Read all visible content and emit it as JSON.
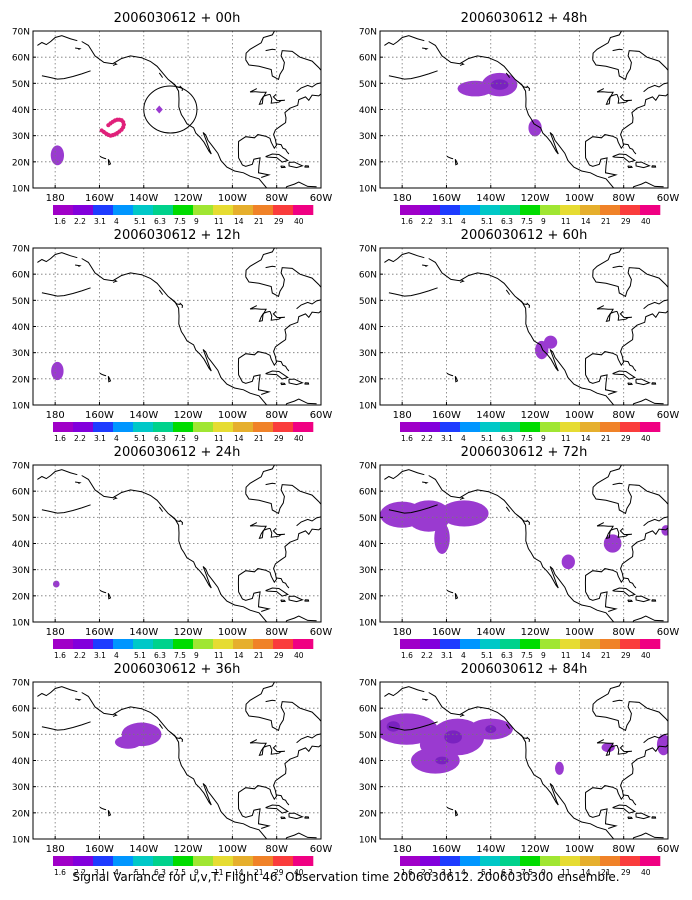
{
  "caption": "Signal Variance for u,v,T. Flight 46. Observation time 2006030612. 2006030300 ensemble.",
  "lat_labels": [
    "10N",
    "20N",
    "30N",
    "40N",
    "50N",
    "60N",
    "70N"
  ],
  "lon_labels": [
    "180",
    "160W",
    "140W",
    "120W",
    "100W",
    "80W",
    "60W"
  ],
  "map_extent": {
    "lon_min": -190,
    "lon_max": -60,
    "lat_min": 10,
    "lat_max": 70
  },
  "colorbar": {
    "labels": [
      "1.6",
      "2.2",
      "3.1",
      "4",
      "5.1",
      "6.3",
      "7.5",
      "9",
      "11",
      "14",
      "21",
      "29",
      "40"
    ],
    "colors": [
      "#a000c8",
      "#8200dc",
      "#1e3cff",
      "#0096ff",
      "#00c8c8",
      "#00d28c",
      "#00dc00",
      "#a0e632",
      "#e6dc32",
      "#e6af2d",
      "#f08228",
      "#fa3c3c",
      "#f00082"
    ]
  },
  "colors": {
    "signal": "#9a3ad0",
    "signal_dark": "#7a22c0",
    "observations": "#e0207a"
  },
  "panels": [
    {
      "title": "2006030612 + 00h",
      "observations": [
        [
          -156,
          34
        ],
        [
          -155,
          34.7
        ],
        [
          -154,
          35.3
        ],
        [
          -153,
          35.8
        ],
        [
          -152,
          36.1
        ],
        [
          -151,
          36.1
        ],
        [
          -150,
          35.9
        ],
        [
          -149.3,
          35.2
        ],
        [
          -149,
          34.2
        ],
        [
          -149.3,
          33.2
        ],
        [
          -150,
          32.3
        ],
        [
          -151,
          31.6
        ],
        [
          -152,
          31
        ],
        [
          -153,
          30.5
        ],
        [
          -154,
          30.2
        ],
        [
          -155,
          30
        ],
        [
          -156,
          30.3
        ],
        [
          -157,
          30.8
        ],
        [
          -158,
          31.4
        ],
        [
          -159,
          32
        ]
      ],
      "blobs": [
        {
          "lon": -179,
          "lat": 22.5,
          "rx": 3,
          "ry": 3.8
        }
      ],
      "dark": [],
      "diamond": [
        -133,
        40
      ],
      "circle": {
        "lon": -128,
        "lat": 40,
        "rx": 12,
        "ry": 9
      }
    },
    {
      "title": "2006030612 + 48h",
      "blobs": [
        {
          "lon": -147,
          "lat": 48,
          "rx": 8,
          "ry": 3
        },
        {
          "lon": -136,
          "lat": 49.5,
          "rx": 8,
          "ry": 4.5
        },
        {
          "lon": -120,
          "lat": 33,
          "rx": 3,
          "ry": 3.3
        }
      ],
      "dark": [
        {
          "lon": -136,
          "lat": 49.5,
          "rx": 4,
          "ry": 2
        }
      ]
    },
    {
      "title": "2006030612 + 12h",
      "blobs": [
        {
          "lon": -179,
          "lat": 23,
          "rx": 2.8,
          "ry": 3.5
        }
      ],
      "dark": []
    },
    {
      "title": "2006030612 + 60h",
      "blobs": [
        {
          "lon": -117,
          "lat": 31,
          "rx": 3,
          "ry": 3.5
        },
        {
          "lon": -113,
          "lat": 34,
          "rx": 3,
          "ry": 2.5
        }
      ],
      "dark": []
    },
    {
      "title": "2006030612 + 24h",
      "blobs": [
        {
          "lon": -179.5,
          "lat": 24.5,
          "rx": 1.5,
          "ry": 1.3
        }
      ],
      "dark": []
    },
    {
      "title": "2006030612 + 72h",
      "blobs": [
        {
          "lon": -180,
          "lat": 51,
          "rx": 10,
          "ry": 5
        },
        {
          "lon": -168,
          "lat": 50.5,
          "rx": 10,
          "ry": 6
        },
        {
          "lon": -152,
          "lat": 51.5,
          "rx": 11,
          "ry": 5
        },
        {
          "lon": -162,
          "lat": 42,
          "rx": 3.5,
          "ry": 6
        },
        {
          "lon": -105,
          "lat": 33,
          "rx": 3,
          "ry": 2.8
        },
        {
          "lon": -85,
          "lat": 40,
          "rx": 4,
          "ry": 3.5
        },
        {
          "lon": -61,
          "lat": 45,
          "rx": 2,
          "ry": 2
        }
      ],
      "dark": []
    },
    {
      "title": "2006030612 + 36h",
      "blobs": [
        {
          "lon": -141,
          "lat": 50,
          "rx": 9,
          "ry": 4.5
        },
        {
          "lon": -147,
          "lat": 47,
          "rx": 6,
          "ry": 2.5
        }
      ],
      "dark": []
    },
    {
      "title": "2006030612 + 84h",
      "blobs": [
        {
          "lon": -178,
          "lat": 52,
          "rx": 14,
          "ry": 6
        },
        {
          "lon": -155,
          "lat": 49,
          "rx": 12,
          "ry": 7
        },
        {
          "lon": -140,
          "lat": 52,
          "rx": 10,
          "ry": 4
        },
        {
          "lon": -165,
          "lat": 40,
          "rx": 11,
          "ry": 5
        },
        {
          "lon": -166,
          "lat": 46,
          "rx": 6,
          "ry": 4
        },
        {
          "lon": -109,
          "lat": 37,
          "rx": 2,
          "ry": 2.5
        },
        {
          "lon": -87,
          "lat": 45,
          "rx": 3,
          "ry": 1.8
        },
        {
          "lon": -62,
          "lat": 46,
          "rx": 3,
          "ry": 4
        }
      ],
      "dark": [
        {
          "lon": -184,
          "lat": 53,
          "rx": 3,
          "ry": 2
        },
        {
          "lon": -157,
          "lat": 49,
          "rx": 4,
          "ry": 2.5
        },
        {
          "lon": -162,
          "lat": 40,
          "rx": 3,
          "ry": 1.5
        },
        {
          "lon": -140,
          "lat": 52,
          "rx": 2.5,
          "ry": 1.5
        }
      ]
    }
  ]
}
